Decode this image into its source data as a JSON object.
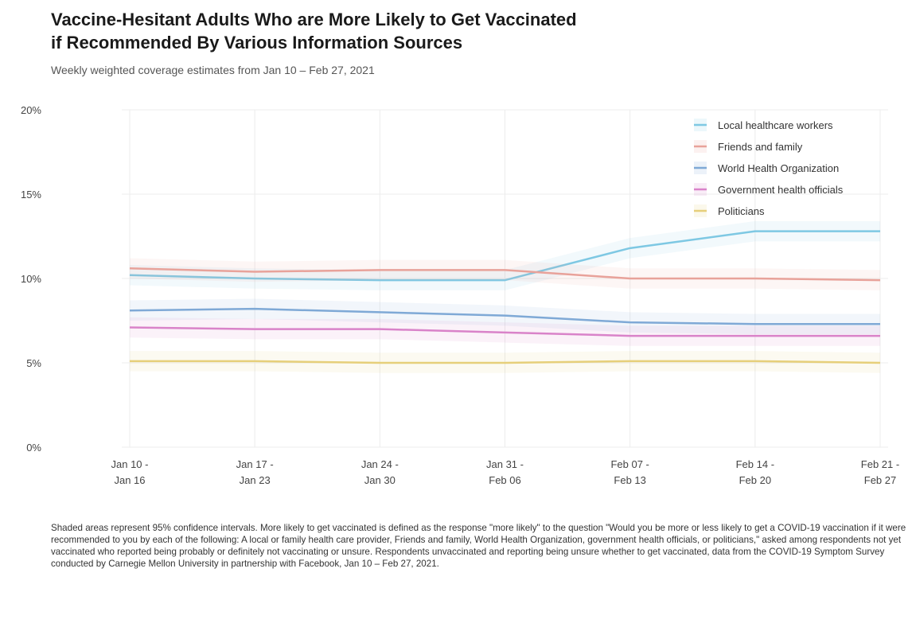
{
  "title_line1": "Vaccine-Hesitant Adults Who are More Likely to Get Vaccinated",
  "title_line2": "if Recommended By Various Information Sources",
  "subtitle": "Weekly weighted coverage estimates from Jan 10 – Feb 27, 2021",
  "footnote": "Shaded areas represent 95% confidence intervals. More likely to get vaccinated is defined as the response \"more likely\" to the question \"Would you be more or less likely to get a COVID-19 vaccination if it were recommended to you by each of the following: A local or family health care provider, Friends and family, World Health Organization, government health officials, or politicians,\" asked among respondents not yet vaccinated who reported being probably or definitely not vaccinating or unsure. Respondents unvaccinated and reporting being unsure whether to get vaccinated, data from the COVID-19 Symptom Survey conducted by Carnegie Mellon University in partnership with Facebook, Jan 10 – Feb 27, 2021.",
  "chart_data": {
    "type": "line",
    "categories": [
      "Jan 10 -\nJan 16",
      "Jan 17 -\nJan 23",
      "Jan 24 -\nJan 30",
      "Jan 31 -\nFeb 06",
      "Feb 07 -\nFeb 13",
      "Feb 14 -\nFeb 20",
      "Feb 21 -\nFeb 27"
    ],
    "y_ticks": [
      "0%",
      "5%",
      "10%",
      "15%",
      "20%"
    ],
    "ylim": [
      0,
      20
    ],
    "grid": true,
    "legend_position": "top-right",
    "series": [
      {
        "name": "Local healthcare workers",
        "color": "#7ec8e3",
        "values": [
          10.2,
          10.0,
          9.9,
          9.9,
          11.8,
          12.8,
          12.8
        ]
      },
      {
        "name": "Friends and family",
        "color": "#e8a29a",
        "values": [
          10.6,
          10.4,
          10.5,
          10.5,
          10.0,
          10.0,
          9.9
        ]
      },
      {
        "name": "World Health Organization",
        "color": "#7fa9d6",
        "values": [
          8.1,
          8.2,
          8.0,
          7.8,
          7.4,
          7.3,
          7.3
        ]
      },
      {
        "name": "Government health officials",
        "color": "#d983c9",
        "values": [
          7.1,
          7.0,
          7.0,
          6.8,
          6.6,
          6.6,
          6.6
        ]
      },
      {
        "name": "Politicians",
        "color": "#e6cf7a",
        "values": [
          5.1,
          5.1,
          5.0,
          5.0,
          5.1,
          5.1,
          5.0
        ]
      }
    ]
  }
}
